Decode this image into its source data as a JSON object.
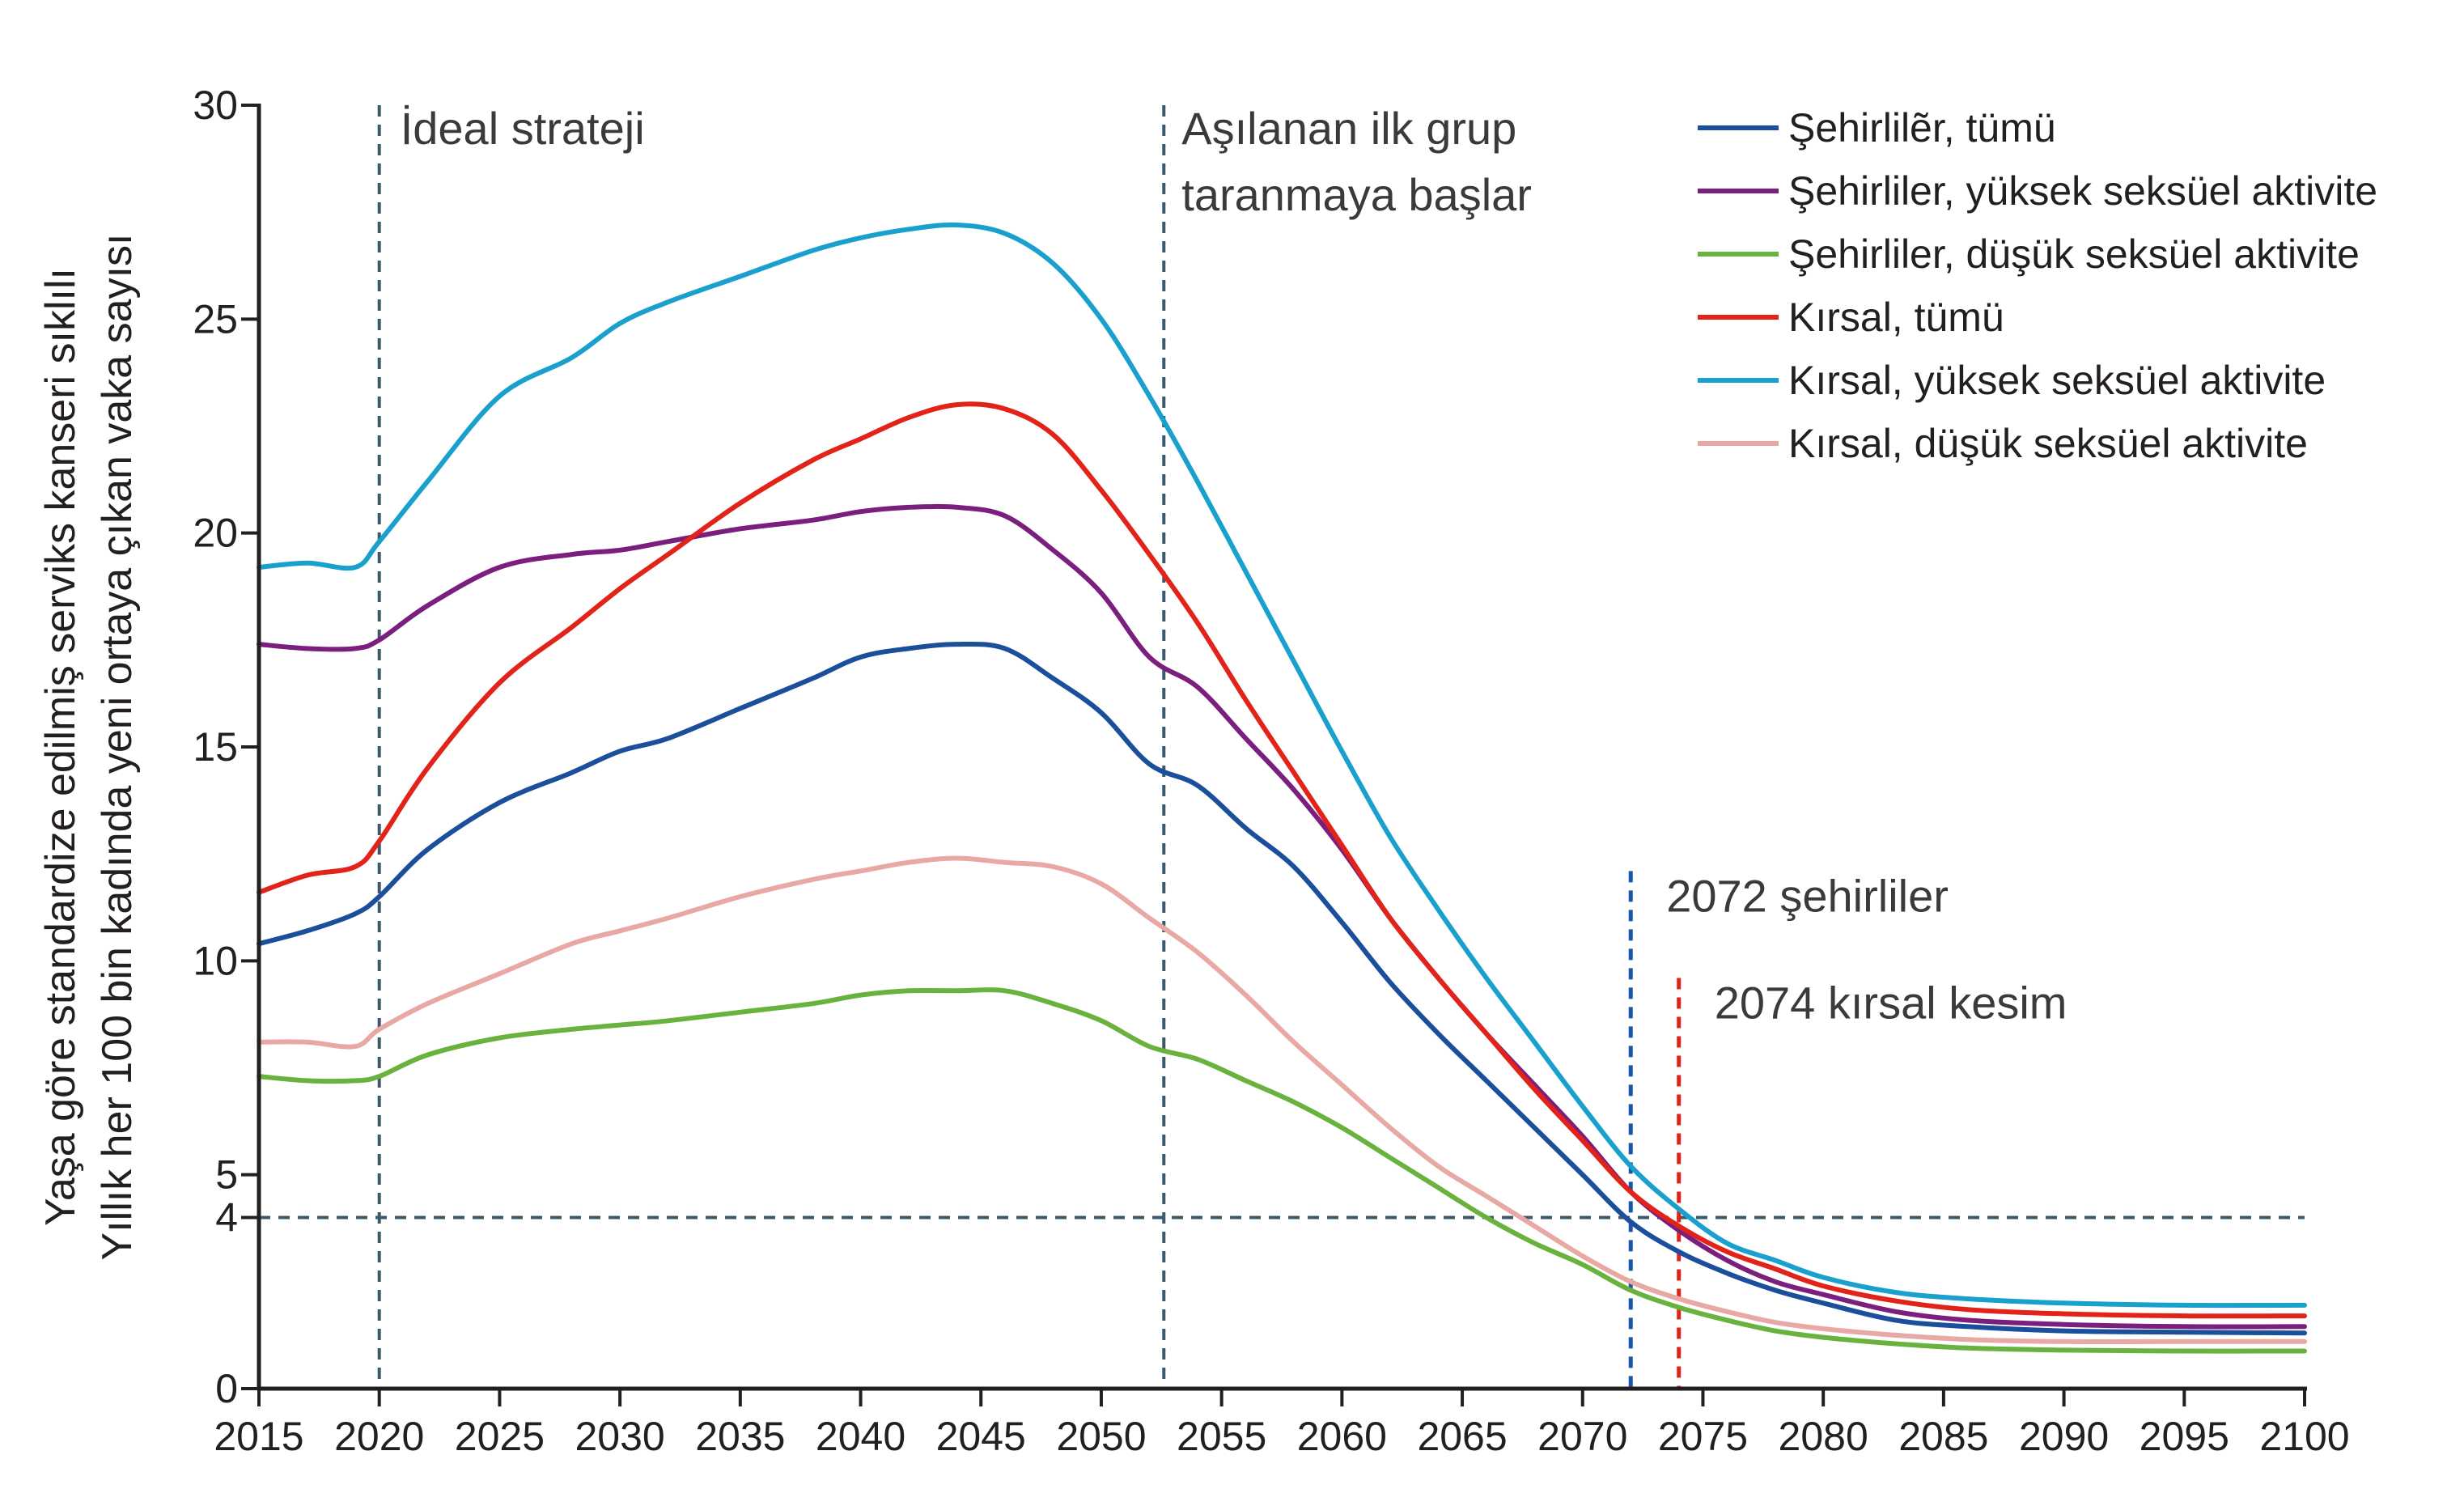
{
  "chart_data": {
    "type": "line",
    "title": "",
    "ylabel_lines": [
      "Yaşa göre standardize edilmiş serviks kanseri sıklılı",
      "Yıllık her 100 bin kadında yeni ortaya çıkan vaka sayısı"
    ],
    "xlabel": "",
    "xlim": [
      2015,
      2100
    ],
    "ylim": [
      0,
      30
    ],
    "x_ticks": [
      "2015",
      "2020",
      "2025",
      "2030",
      "2035",
      "2040",
      "2045",
      "2050",
      "2055",
      "2060",
      "2065",
      "2070",
      "2075",
      "2080",
      "2085",
      "2090",
      "2095",
      "2100"
    ],
    "y_ticks": [
      "0",
      "4",
      "5",
      "10",
      "15",
      "20",
      "25",
      "30"
    ],
    "x": [
      2015,
      2017,
      2019,
      2020,
      2022,
      2025,
      2028,
      2030,
      2032,
      2035,
      2038,
      2040,
      2042,
      2044,
      2046,
      2048,
      2050,
      2052,
      2054,
      2056,
      2058,
      2060,
      2062,
      2064,
      2066,
      2068,
      2070,
      2072,
      2074,
      2076,
      2078,
      2080,
      2083,
      2086,
      2090,
      2095,
      2100
    ],
    "series": [
      {
        "name": "Şehirlilẽr, tümü",
        "color": "#1b4f9c",
        "values": [
          10.4,
          10.7,
          11.1,
          11.5,
          12.6,
          13.7,
          14.4,
          14.9,
          15.2,
          15.9,
          16.6,
          17.1,
          17.3,
          17.4,
          17.3,
          16.6,
          15.8,
          14.6,
          14.1,
          13.1,
          12.2,
          10.9,
          9.5,
          8.3,
          7.2,
          6.1,
          5.0,
          3.9,
          3.2,
          2.7,
          2.3,
          2.0,
          1.6,
          1.45,
          1.35,
          1.32,
          1.3
        ]
      },
      {
        "name": "Şehirliler, yüksek seksüel aktivite",
        "color": "#7b1f7e",
        "values": [
          17.4,
          17.3,
          17.3,
          17.5,
          18.3,
          19.2,
          19.5,
          19.6,
          19.8,
          20.1,
          20.3,
          20.5,
          20.6,
          20.6,
          20.4,
          19.6,
          18.6,
          17.1,
          16.4,
          15.2,
          14.0,
          12.6,
          11.0,
          9.6,
          8.3,
          7.1,
          5.9,
          4.6,
          3.7,
          3.0,
          2.5,
          2.2,
          1.8,
          1.6,
          1.5,
          1.45,
          1.45
        ]
      },
      {
        "name": "Şehirliler, düşük seksüel aktivite",
        "color": "#6ab23e",
        "values": [
          7.3,
          7.2,
          7.2,
          7.3,
          7.8,
          8.2,
          8.4,
          8.5,
          8.6,
          8.8,
          9.0,
          9.2,
          9.3,
          9.3,
          9.3,
          9.0,
          8.6,
          8.0,
          7.7,
          7.2,
          6.7,
          6.1,
          5.4,
          4.7,
          4.0,
          3.4,
          2.9,
          2.3,
          1.9,
          1.6,
          1.35,
          1.2,
          1.05,
          0.95,
          0.9,
          0.88,
          0.88
        ]
      },
      {
        "name": "Kırsal, tümü",
        "color": "#e2231a",
        "values": [
          11.6,
          12.0,
          12.2,
          12.8,
          14.5,
          16.5,
          17.8,
          18.7,
          19.5,
          20.7,
          21.7,
          22.2,
          22.7,
          23.0,
          22.9,
          22.3,
          21.0,
          19.5,
          17.9,
          16.1,
          14.4,
          12.7,
          11.0,
          9.6,
          8.3,
          7.0,
          5.8,
          4.6,
          3.8,
          3.2,
          2.8,
          2.4,
          2.05,
          1.85,
          1.75,
          1.7,
          1.7
        ]
      },
      {
        "name": "Kırsal, yüksek seksüel aktivite",
        "color": "#1aa0cc",
        "values": [
          19.2,
          19.3,
          19.2,
          19.8,
          21.2,
          23.2,
          24.1,
          24.9,
          25.4,
          26.0,
          26.6,
          26.9,
          27.1,
          27.2,
          27.0,
          26.3,
          25.0,
          23.2,
          21.2,
          19.1,
          17.0,
          14.9,
          12.9,
          11.2,
          9.6,
          8.1,
          6.6,
          5.2,
          4.2,
          3.4,
          3.0,
          2.6,
          2.25,
          2.1,
          2.0,
          1.95,
          1.95
        ]
      },
      {
        "name": "Kırsal, düşük seksüel aktivite",
        "color": "#e8a9a4",
        "values": [
          8.1,
          8.1,
          8.0,
          8.4,
          9.0,
          9.7,
          10.4,
          10.7,
          11.0,
          11.5,
          11.9,
          12.1,
          12.3,
          12.4,
          12.3,
          12.2,
          11.8,
          11.0,
          10.2,
          9.2,
          8.1,
          7.1,
          6.1,
          5.2,
          4.5,
          3.8,
          3.1,
          2.5,
          2.1,
          1.8,
          1.55,
          1.4,
          1.25,
          1.15,
          1.1,
          1.1,
          1.1
        ]
      }
    ],
    "reference_lines": [
      {
        "type": "vertical",
        "x": 2020,
        "label": "İdeal strateji",
        "color": "#3d5a6c"
      },
      {
        "type": "vertical",
        "x": 2052.6,
        "label_lines": [
          "Aşılanan ilk grup",
          "taranmaya başlar"
        ],
        "color": "#3d5a6c"
      },
      {
        "type": "horizontal",
        "y": 4,
        "color": "#3d5a6c"
      },
      {
        "type": "vertical",
        "x": 2072,
        "y_top": 12.1,
        "label": "2072 şehirliler",
        "color": "#1b56a8",
        "label_color": "#3a9fd1"
      },
      {
        "type": "vertical",
        "x": 2074,
        "y_top": 9.6,
        "label": "2074 kırsal kesim",
        "color": "#e2231a",
        "label_color": "#e2231a"
      }
    ],
    "legend_position": "top-right"
  }
}
